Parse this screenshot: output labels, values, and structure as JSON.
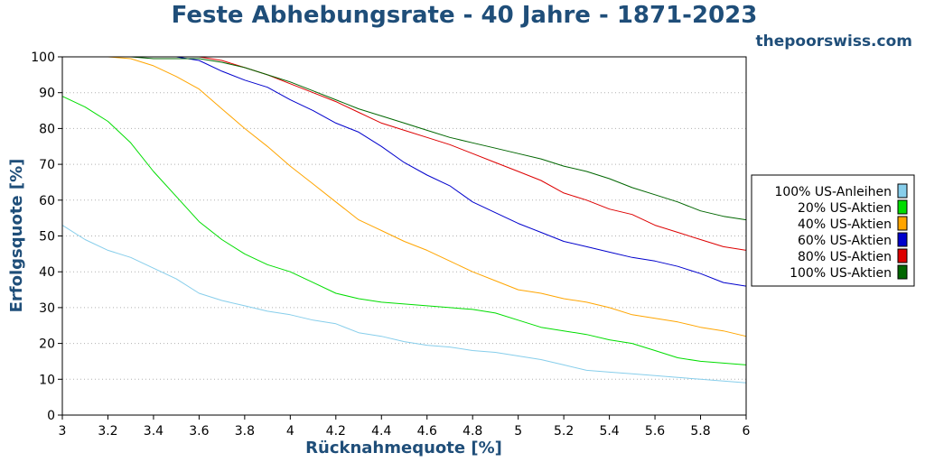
{
  "chart_data": {
    "type": "line",
    "title": "Feste Abhebungsrate - 40 Jahre - 1871-2023",
    "watermark": "thepoorswiss.com",
    "xlabel": "Rücknahmequote [%]",
    "ylabel": "Erfolgsquote [%]",
    "xlim": [
      3,
      6
    ],
    "ylim": [
      0,
      100
    ],
    "xticks": [
      "3",
      "3.2",
      "3.4",
      "3.6",
      "3.8",
      "4",
      "4.2",
      "4.4",
      "4.6",
      "4.8",
      "5",
      "5.2",
      "5.4",
      "5.6",
      "5.8",
      "6"
    ],
    "yticks": [
      "0",
      "10",
      "20",
      "30",
      "40",
      "50",
      "60",
      "70",
      "80",
      "90",
      "100"
    ],
    "grid": "horizontal dotted",
    "legend_position": "right",
    "x": [
      3.0,
      3.1,
      3.2,
      3.3,
      3.4,
      3.5,
      3.6,
      3.7,
      3.8,
      3.9,
      4.0,
      4.1,
      4.2,
      4.3,
      4.4,
      4.5,
      4.6,
      4.7,
      4.8,
      4.9,
      5.0,
      5.1,
      5.2,
      5.3,
      5.4,
      5.5,
      5.6,
      5.7,
      5.8,
      5.9,
      6.0
    ],
    "series": [
      {
        "name": "100% US-Anleihen",
        "color": "#87ceeb",
        "values": [
          53,
          49,
          46,
          44,
          41,
          38,
          34,
          32,
          30.5,
          29,
          28,
          26.5,
          25.5,
          23,
          22,
          20.5,
          19.5,
          19,
          18,
          17.5,
          16.5,
          15.5,
          14,
          12.5,
          12,
          11.5,
          11,
          10.5,
          10,
          9.5,
          9
        ]
      },
      {
        "name": "20% US-Aktien",
        "color": "#00dd00",
        "values": [
          89,
          86,
          82,
          76,
          68,
          61,
          54,
          49,
          45,
          42,
          40,
          37,
          34,
          32.5,
          31.5,
          31,
          30.5,
          30,
          29.5,
          28.5,
          26.5,
          24.5,
          23.5,
          22.5,
          21,
          20,
          18,
          16,
          15,
          14.5,
          14
        ]
      },
      {
        "name": "40% US-Aktien",
        "color": "#ffa500",
        "values": [
          100,
          100,
          100,
          99.5,
          97.5,
          94.5,
          91,
          85.5,
          80,
          75,
          69.5,
          64.5,
          59.5,
          54.5,
          51.5,
          48.5,
          46,
          43,
          40,
          37.5,
          35,
          34,
          32.5,
          31.5,
          30,
          28,
          27,
          26,
          24.5,
          23.5,
          22
        ]
      },
      {
        "name": "60% US-Aktien",
        "color": "#0000cc",
        "values": [
          100,
          100,
          100,
          100,
          100,
          100,
          99,
          96,
          93.5,
          91.5,
          88,
          85,
          81.5,
          79,
          75,
          70.5,
          67,
          64,
          59.5,
          56.5,
          53.5,
          51,
          48.5,
          47,
          45.5,
          44,
          43,
          41.5,
          39.5,
          37,
          36
        ]
      },
      {
        "name": "80% US-Aktien",
        "color": "#dd0000",
        "values": [
          100,
          100,
          100,
          100,
          100,
          100,
          100,
          99,
          97,
          95,
          92.5,
          90,
          87.5,
          84.5,
          81.5,
          79.5,
          77.5,
          75.5,
          73,
          70.5,
          68,
          65.5,
          62,
          60,
          57.5,
          56,
          53,
          51,
          49,
          47,
          46
        ]
      },
      {
        "name": "100% US-Aktien",
        "color": "#006600",
        "values": [
          100,
          100,
          100,
          100,
          99.5,
          99.5,
          99.5,
          98.5,
          97,
          95,
          93,
          90.5,
          88,
          85.5,
          83.5,
          81.5,
          79.5,
          77.5,
          76,
          74.5,
          73,
          71.5,
          69.5,
          68,
          66,
          63.5,
          61.5,
          59.5,
          57,
          55.5,
          54.5
        ]
      }
    ]
  }
}
